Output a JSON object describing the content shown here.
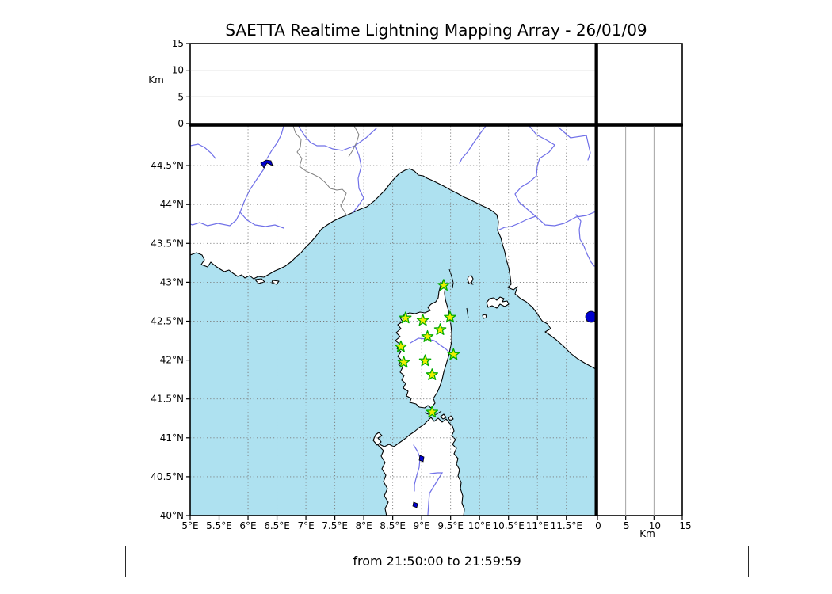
{
  "title": "SAETTA Realtime Lightning Mapping Array - 26/01/09",
  "status_bar": {
    "text": "from 21:50:00 to 21:59:59"
  },
  "colors": {
    "sea": "#aee1f0",
    "land": "#ffffff",
    "coast": "#000000",
    "river": "#7070e8",
    "lake": "#0000cd",
    "country_border": "#808080",
    "grid_dashed": "#7a7a7a",
    "grid_solid": "#999999",
    "star_fill": "#eeee00",
    "star_edge": "#00aa00",
    "panel_edge": "#000000"
  },
  "altitude_axis": {
    "label": "Km",
    "range": [
      0,
      15
    ],
    "ticks": [
      {
        "value": 0,
        "label": "0"
      },
      {
        "value": 5,
        "label": "5"
      },
      {
        "value": 10,
        "label": "10"
      },
      {
        "value": 15,
        "label": "15"
      }
    ],
    "gridlines": [
      5,
      10
    ]
  },
  "map_axes": {
    "lon_range": [
      5.0,
      12.01
    ],
    "lat_range": [
      40.0,
      45.01
    ],
    "lon_ticks": [
      {
        "value": 5.0,
        "label": "5°E"
      },
      {
        "value": 5.5,
        "label": "5.5°E"
      },
      {
        "value": 6.0,
        "label": "6°E"
      },
      {
        "value": 6.5,
        "label": "6.5°E"
      },
      {
        "value": 7.0,
        "label": "7°E"
      },
      {
        "value": 7.5,
        "label": "7.5°E"
      },
      {
        "value": 8.0,
        "label": "8°E"
      },
      {
        "value": 8.5,
        "label": "8.5°E"
      },
      {
        "value": 9.0,
        "label": "9°E"
      },
      {
        "value": 9.5,
        "label": "9.5°E"
      },
      {
        "value": 10.0,
        "label": "10°E"
      },
      {
        "value": 10.5,
        "label": "10.5°E"
      },
      {
        "value": 11.0,
        "label": "11°E"
      },
      {
        "value": 11.5,
        "label": "11.5°E"
      }
    ],
    "lat_ticks": [
      {
        "value": 44.5,
        "label": "44.5°N"
      },
      {
        "value": 44.0,
        "label": "44°N"
      },
      {
        "value": 43.5,
        "label": "43.5°N"
      },
      {
        "value": 43.0,
        "label": "43°N"
      },
      {
        "value": 42.5,
        "label": "42.5°N"
      },
      {
        "value": 42.0,
        "label": "42°N"
      },
      {
        "value": 41.5,
        "label": "41.5°N"
      },
      {
        "value": 41.0,
        "label": "41°N"
      },
      {
        "value": 40.5,
        "label": "40.5°N"
      },
      {
        "value": 40.0,
        "label": "40°N"
      }
    ]
  },
  "stations": [
    {
      "lon": 9.38,
      "lat": 42.96
    },
    {
      "lon": 8.72,
      "lat": 42.54
    },
    {
      "lon": 9.02,
      "lat": 42.51
    },
    {
      "lon": 9.49,
      "lat": 42.55
    },
    {
      "lon": 9.32,
      "lat": 42.39
    },
    {
      "lon": 9.1,
      "lat": 42.3
    },
    {
      "lon": 8.64,
      "lat": 42.17
    },
    {
      "lon": 9.55,
      "lat": 42.07
    },
    {
      "lon": 8.69,
      "lat": 41.97
    },
    {
      "lon": 9.06,
      "lat": 41.99
    },
    {
      "lon": 9.18,
      "lat": 41.81
    },
    {
      "lon": 9.18,
      "lat": 41.33
    }
  ]
}
